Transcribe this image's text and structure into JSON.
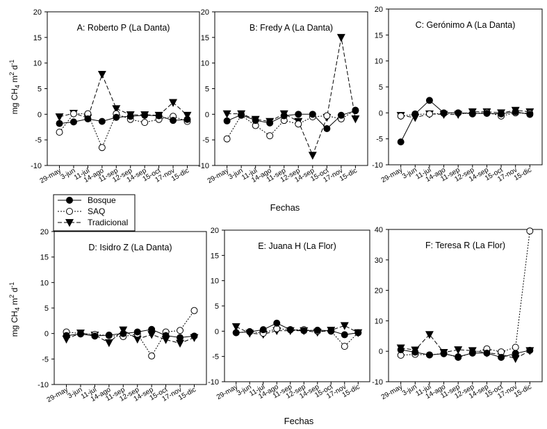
{
  "figure": {
    "ylabel_main": "mg CH",
    "ylabel_sub4": "4",
    "ylabel_mid": " m",
    "ylabel_sup2": "2",
    "ylabel_d": " d",
    "ylabel_supm1": "-1",
    "xlabel": "Fechas",
    "legend": [
      {
        "name": "Bosque",
        "marker": "circle-filled",
        "dash": "solid"
      },
      {
        "name": "SAQ",
        "marker": "circle-open",
        "dash": "dotted"
      },
      {
        "name": "Tradicional",
        "marker": "triangle-down",
        "dash": "dashed"
      }
    ]
  },
  "chart_data": [
    {
      "type": "line",
      "panel": "A",
      "title": "A: Roberto P (La Danta)",
      "categories": [
        "29-may",
        "3-jun",
        "11-jul",
        "14-ago",
        "11-sep",
        "12-sep",
        "14-sep",
        "15-oct",
        "17-nov",
        "15-dic"
      ],
      "yticks": [
        "20",
        "15",
        "10",
        "5",
        "0",
        "-5",
        "-10"
      ],
      "ylim": [
        -10,
        20
      ],
      "series": [
        {
          "name": "Bosque",
          "values": [
            -1.8,
            -1.5,
            -0.9,
            -1.4,
            -0.6,
            -0.4,
            -0.2,
            -0.3,
            -1.2,
            -1.0
          ]
        },
        {
          "name": "SAQ",
          "values": [
            -3.5,
            0.1,
            0.1,
            -6.5,
            0.1,
            -1.0,
            -1.6,
            -1.0,
            -0.4,
            -1.4
          ]
        },
        {
          "name": "Tradicional",
          "values": [
            -0.5,
            0.2,
            -0.7,
            7.8,
            1.1,
            -0.1,
            -0.1,
            -0.2,
            2.3,
            -0.2
          ]
        }
      ]
    },
    {
      "type": "line",
      "panel": "B",
      "title": "B: Fredy A (La Danta)",
      "categories": [
        "29-may",
        "3-jun",
        "11-jul",
        "14-ago",
        "11-sep",
        "12-sep",
        "14-sep",
        "15-oct",
        "17-nov",
        "15-dic"
      ],
      "yticks": [
        "20",
        "15",
        "10",
        "5",
        "0",
        "-5",
        "-10"
      ],
      "ylim": [
        -10,
        20
      ],
      "series": [
        {
          "name": "Bosque",
          "values": [
            -1.3,
            -0.1,
            -1.2,
            -1.7,
            -0.3,
            0.0,
            0.0,
            -2.8,
            -0.2,
            0.7
          ]
        },
        {
          "name": "SAQ",
          "values": [
            -4.8,
            -0.2,
            -2.2,
            -4.2,
            -1.2,
            -1.9,
            -0.5,
            -0.3,
            -0.9,
            0.8
          ]
        },
        {
          "name": "Tradicional",
          "values": [
            0.1,
            0.1,
            -1.0,
            -1.4,
            0.1,
            -1.4,
            -8.0,
            -0.6,
            15.0,
            -0.9
          ]
        }
      ]
    },
    {
      "type": "line",
      "panel": "C",
      "title": "C: Gerónimo A (La Danta)",
      "categories": [
        "29-may",
        "3-jun",
        "11-jul",
        "14-ago",
        "11-sep",
        "12-sep",
        "14-sep",
        "15-oct",
        "17-nov",
        "15-dic"
      ],
      "yticks": [
        "20",
        "15",
        "10",
        "5",
        "0",
        "-5",
        "-10"
      ],
      "ylim": [
        -10,
        20
      ],
      "series": [
        {
          "name": "Bosque",
          "values": [
            -5.6,
            -0.2,
            2.4,
            0.0,
            0.0,
            -0.1,
            -0.1,
            -0.2,
            0.2,
            -0.3
          ]
        },
        {
          "name": "SAQ",
          "values": [
            -0.6,
            -0.3,
            -0.2,
            -0.1,
            0.0,
            -0.2,
            0.1,
            -0.6,
            0.0,
            -0.1
          ]
        },
        {
          "name": "Tradicional",
          "values": [
            -0.5,
            -0.9,
            -0.2,
            -0.3,
            -0.3,
            0.2,
            0.2,
            0.0,
            0.5,
            0.2
          ]
        }
      ]
    },
    {
      "type": "line",
      "panel": "D",
      "title": "D: Isidro Z (La Danta)",
      "categories": [
        "29-may",
        "3-jun",
        "11-jul",
        "14-ago",
        "11-sep",
        "12-sep",
        "14-sep",
        "15-oct",
        "17-nov",
        "15-dic"
      ],
      "yticks": [
        "20",
        "15",
        "10",
        "5",
        "0",
        "-5",
        "-10"
      ],
      "ylim": [
        -10,
        20
      ],
      "series": [
        {
          "name": "Bosque",
          "values": [
            -0.4,
            -0.1,
            -0.5,
            -0.3,
            0.0,
            0.3,
            0.8,
            -0.4,
            -0.8,
            -0.5
          ]
        },
        {
          "name": "SAQ",
          "values": [
            0.3,
            0.0,
            -0.2,
            -0.4,
            -0.6,
            -0.1,
            -4.4,
            0.3,
            0.6,
            4.5
          ]
        },
        {
          "name": "Tradicional",
          "values": [
            -1.1,
            0.1,
            -0.3,
            -1.8,
            0.7,
            -1.1,
            -0.2,
            -1.2,
            -1.9,
            -0.8
          ]
        }
      ]
    },
    {
      "type": "line",
      "panel": "E",
      "title": "E: Juana H (La Flor)",
      "categories": [
        "29-may",
        "3-jun",
        "11-jul",
        "14-ago",
        "11-sep",
        "12-sep",
        "14-sep",
        "15-oct",
        "17-nov",
        "15-dic"
      ],
      "yticks": [
        "20",
        "15",
        "10",
        "5",
        "0",
        "-5",
        "-10"
      ],
      "ylim": [
        -10,
        20
      ],
      "series": [
        {
          "name": "Bosque",
          "values": [
            -0.3,
            -0.1,
            0.3,
            1.6,
            0.3,
            0.1,
            0.2,
            0.1,
            -0.7,
            -0.3
          ]
        },
        {
          "name": "SAQ",
          "values": [
            -0.3,
            -0.1,
            -0.4,
            0.5,
            0.3,
            0.3,
            0.0,
            0.0,
            -3.0,
            -0.3
          ]
        },
        {
          "name": "Tradicional",
          "values": [
            0.9,
            -0.4,
            -0.6,
            0.1,
            0.1,
            0.1,
            -0.2,
            0.2,
            1.1,
            -0.3
          ]
        }
      ]
    },
    {
      "type": "line",
      "panel": "F",
      "title": "F: Teresa R (La Flor)",
      "categories": [
        "29-may",
        "3-jun",
        "11-jul",
        "14-ago",
        "11-sep",
        "12-sep",
        "14-sep",
        "15-oct",
        "17-nov",
        "15-dic"
      ],
      "yticks": [
        "40",
        "30",
        "20",
        "10",
        "0",
        "-10"
      ],
      "ylim": [
        -10,
        40
      ],
      "series": [
        {
          "name": "Bosque",
          "values": [
            0.5,
            -0.3,
            -1.2,
            -0.8,
            -1.8,
            -0.6,
            -0.6,
            -2.0,
            -0.7,
            0.3
          ]
        },
        {
          "name": "SAQ",
          "values": [
            -1.3,
            -1.0,
            -1.2,
            -0.7,
            -2.0,
            -0.5,
            0.8,
            -0.2,
            1.3,
            39.5
          ]
        },
        {
          "name": "Tradicional",
          "values": [
            1.1,
            0.4,
            5.5,
            -0.4,
            0.5,
            0.2,
            -0.5,
            -1.0,
            -2.4,
            0.2
          ]
        }
      ]
    }
  ]
}
